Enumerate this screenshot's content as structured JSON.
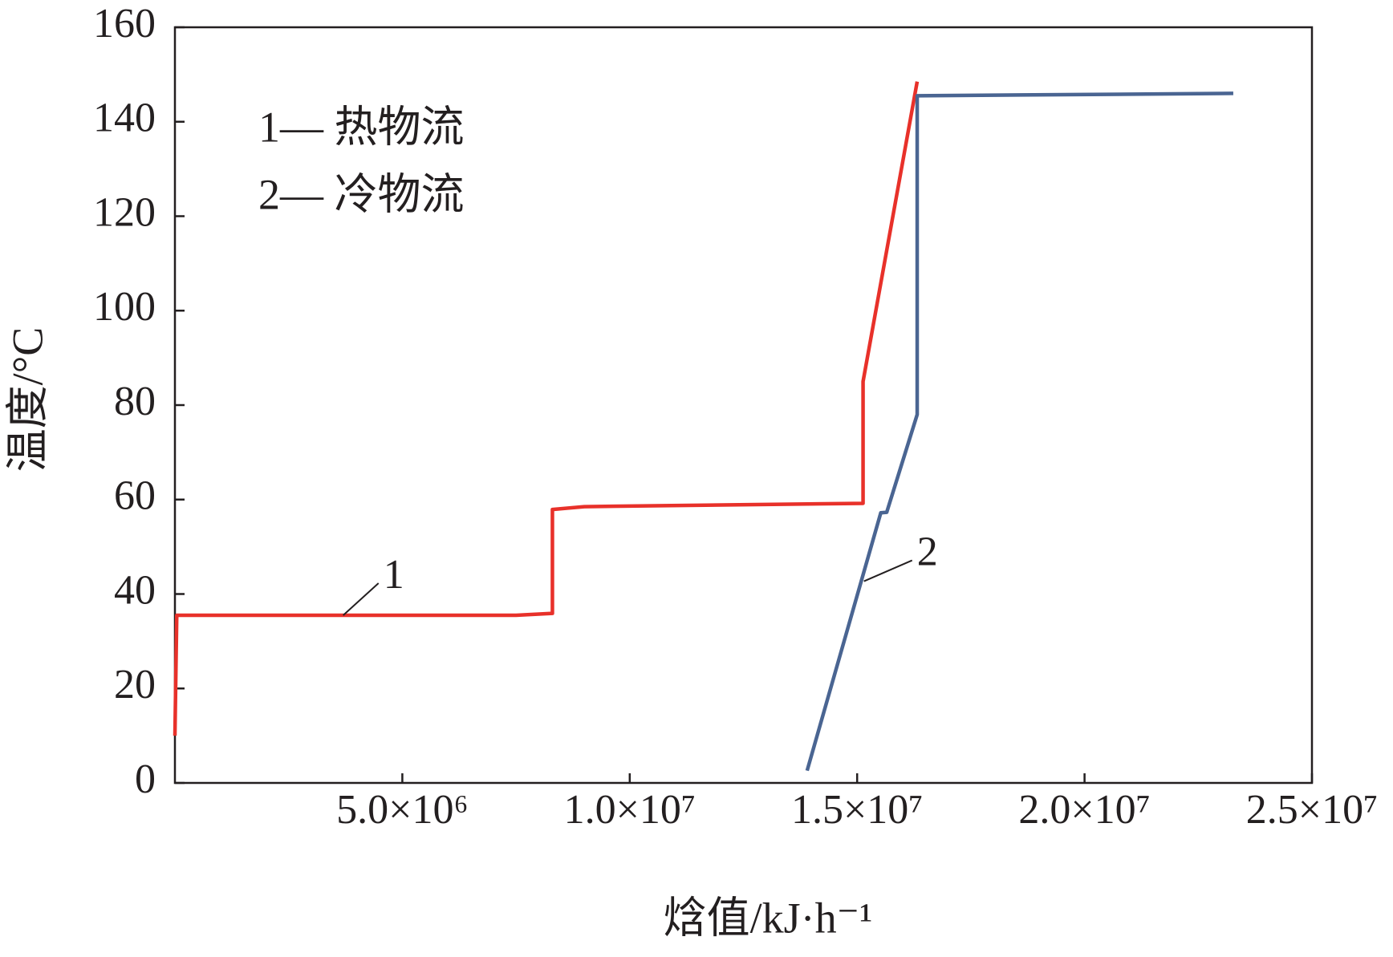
{
  "chart_data": {
    "type": "line",
    "x_label": "焓值/kJ·h⁻¹",
    "y_label": "温度/°C",
    "xlim": [
      0,
      25000000
    ],
    "ylim": [
      0,
      160
    ],
    "xticks": [
      {
        "value": 5000000,
        "label": "5.0×10⁶"
      },
      {
        "value": 10000000,
        "label": "1.0×10⁷"
      },
      {
        "value": 15000000,
        "label": "1.5×10⁷"
      },
      {
        "value": 20000000,
        "label": "2.0×10⁷"
      },
      {
        "value": 25000000,
        "label": "2.5×10⁷"
      }
    ],
    "yticks": [
      0,
      20,
      40,
      60,
      80,
      100,
      120,
      140,
      160
    ],
    "grid": false,
    "series": [
      {
        "name": "1— 热物流",
        "color": "#e8312a",
        "x": [
          0,
          40000,
          7500000,
          8300000,
          8300000,
          9000000,
          15130000,
          15130000,
          16320000
        ],
        "values": [
          10,
          35.5,
          35.5,
          35.9,
          57.9,
          58.5,
          59.2,
          85,
          148.5
        ]
      },
      {
        "name": "2— 冷物流",
        "color": "#4a6592",
        "x": [
          13900000,
          15520000,
          15650000,
          16320000,
          16320000,
          23270000
        ],
        "values": [
          2.6,
          57.2,
          57.3,
          78,
          145.5,
          146
        ]
      }
    ],
    "annotations": [
      {
        "text": "1",
        "x": 3700000,
        "y": 35.5
      },
      {
        "text": "2",
        "x": 15150000,
        "y": 42.7
      }
    ]
  }
}
